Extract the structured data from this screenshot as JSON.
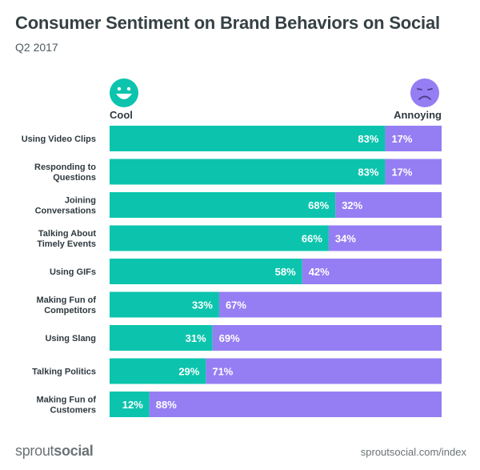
{
  "title": "Consumer Sentiment on Brand Behaviors on Social",
  "subtitle": "Q2 2017",
  "legend": {
    "left_label": "Cool",
    "right_label": "Annoying",
    "left_icon": "smiling-face-icon",
    "right_icon": "frowning-face-icon"
  },
  "colors": {
    "cool": "#0cc4ad",
    "annoying": "#957ef3"
  },
  "chart_data": {
    "type": "bar",
    "orientation": "horizontal",
    "stacked": true,
    "categories": [
      [
        "Using Video Clips"
      ],
      [
        "Responding to",
        "Questions"
      ],
      [
        "Joining",
        "Conversations"
      ],
      [
        "Talking About",
        "Timely Events"
      ],
      [
        "Using GIFs"
      ],
      [
        "Making Fun of",
        "Competitors"
      ],
      [
        "Using Slang"
      ],
      [
        "Talking Politics"
      ],
      [
        "Making Fun of",
        "Customers"
      ]
    ],
    "series": [
      {
        "name": "Cool",
        "values": [
          83,
          83,
          68,
          66,
          58,
          33,
          31,
          29,
          12
        ],
        "labels": [
          "83%",
          "83%",
          "68%",
          "66%",
          "58%",
          "33%",
          "31%",
          "29%",
          "12%"
        ]
      },
      {
        "name": "Annoying",
        "values": [
          17,
          17,
          32,
          34,
          42,
          67,
          69,
          71,
          88
        ],
        "labels": [
          "17%",
          "17%",
          "32%",
          "34%",
          "42%",
          "67%",
          "69%",
          "71%",
          "88%"
        ]
      }
    ],
    "xlim": [
      0,
      100
    ],
    "grid": false,
    "legend_position": "top"
  },
  "footer": {
    "logo_light": "sprout",
    "logo_bold": "social",
    "url": "sproutsocial.com/index"
  }
}
